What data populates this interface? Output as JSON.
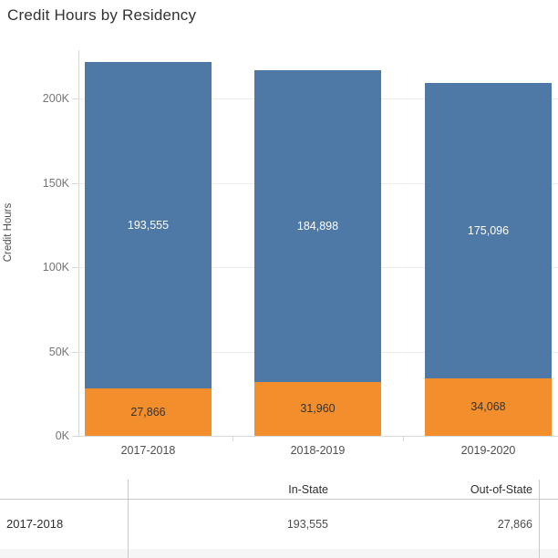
{
  "title": "Credit Hours by Residency",
  "chart_data": {
    "type": "bar",
    "stacked": true,
    "title": "Credit Hours by Residency",
    "categories": [
      "2017-2018",
      "2018-2019",
      "2019-2020"
    ],
    "series": [
      {
        "name": "Out-of-State",
        "color": "#f28e2b",
        "label_color": "#333333",
        "values": [
          27866,
          31960,
          34068
        ],
        "labels": [
          "27,866",
          "31,960",
          "34,068"
        ]
      },
      {
        "name": "In-State",
        "color": "#4e79a7",
        "label_color": "#ffffff",
        "values": [
          193555,
          184898,
          175096
        ],
        "labels": [
          "193,555",
          "184,898",
          "175,096"
        ]
      }
    ],
    "xlabel": "",
    "ylabel": "Credit Hours",
    "ylim": [
      0,
      225000
    ],
    "yticks": [
      {
        "value": 0,
        "label": "0K"
      },
      {
        "value": 50000,
        "label": "50K"
      },
      {
        "value": 100000,
        "label": "100K"
      },
      {
        "value": 150000,
        "label": "150K"
      },
      {
        "value": 200000,
        "label": "200K"
      }
    ],
    "grid": true,
    "legend": "none",
    "totals": [
      221421,
      216858,
      209164
    ]
  },
  "table": {
    "columns": [
      "In-State",
      "Out-of-State"
    ],
    "rows": [
      {
        "label": "2017-2018",
        "cells": [
          "193,555",
          "27,866"
        ]
      }
    ]
  },
  "colors": {
    "in_state": "#4e79a7",
    "out_of_state": "#f28e2b",
    "gridline": "#ebebeb",
    "axis_line": "#d7d7d7",
    "table_line": "#c9c9c9",
    "band": "#f5f5f5"
  }
}
